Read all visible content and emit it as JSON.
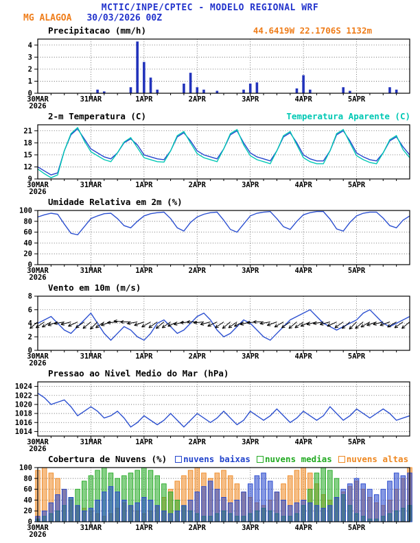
{
  "header": {
    "title": "MCTIC/INPE/CPTEC - MODELO REGIONAL WRF",
    "station": "MG ALAGOA",
    "run": "30/03/2026 00Z",
    "coords": "44.6419W 22.1706S 1132m"
  },
  "colors": {
    "header_blue": "#2233cc",
    "orange": "#ef7d1a",
    "line_blue": "#2b4fd0",
    "cyan": "#00c8b4",
    "green": "#22aa22",
    "axis_black": "#000000"
  },
  "x_axis": {
    "hours_total": 168,
    "tick_hours": [
      0,
      24,
      48,
      72,
      96,
      120,
      144
    ],
    "tick_labels": [
      "30MAR",
      "31MAR",
      "1APR",
      "2APR",
      "3APR",
      "4APR",
      "5APR"
    ],
    "year_label": "2026"
  },
  "chart_data": [
    {
      "id": "precip",
      "type": "bar",
      "title": "Precipitacao (mm/h)",
      "ylim": [
        0,
        4.5
      ],
      "yticks": [
        0,
        1,
        2,
        3,
        4
      ],
      "x_step_hours": 3,
      "color": "#2233bb",
      "values": [
        0,
        0,
        0,
        0,
        0,
        0,
        0,
        0,
        0,
        0.3,
        0.15,
        0,
        0,
        0,
        0.5,
        4.3,
        2.6,
        1.3,
        0.3,
        0,
        0,
        0,
        0.8,
        1.7,
        0.5,
        0.3,
        0,
        0.2,
        0,
        0,
        0,
        0.3,
        0.8,
        0.9,
        0,
        0,
        0,
        0,
        0,
        0.4,
        1.5,
        0.3,
        0,
        0,
        0,
        0,
        0.5,
        0.2,
        0,
        0,
        0,
        0,
        0,
        0.5,
        0.3,
        0,
        0
      ]
    },
    {
      "id": "temp",
      "type": "line",
      "title": "2-m Temperatura (C)",
      "right_label": "Temperatura Aparente (C)",
      "right_label_color": "#00c8b4",
      "ylim": [
        9,
        22.5
      ],
      "yticks": [
        9,
        12,
        15,
        18,
        21
      ],
      "x_step_hours": 3,
      "series": [
        {
          "name": "2-m Temperatura",
          "color": "#2244cc",
          "values": [
            12,
            11,
            10,
            10.5,
            16,
            20,
            21.5,
            19,
            16.5,
            15.5,
            14.5,
            14,
            15.5,
            18,
            19,
            17.5,
            15,
            14.5,
            14,
            13.8,
            16,
            19.5,
            20.5,
            18.5,
            16,
            15,
            14.5,
            14,
            16.5,
            20,
            21,
            18,
            15.5,
            14.5,
            14,
            13.5,
            16,
            19.5,
            20.5,
            18,
            15,
            14,
            13.5,
            13.5,
            16,
            20,
            21,
            18.5,
            15.5,
            14.5,
            13.8,
            13.5,
            15.5,
            18.5,
            19.5,
            17,
            15
          ]
        },
        {
          "name": "Temperatura Aparente",
          "color": "#00c8b4",
          "values": [
            11.5,
            10.3,
            9.3,
            10,
            16,
            20.3,
            21.8,
            18.5,
            15.8,
            14.8,
            13.8,
            13.3,
            15.5,
            18.2,
            19.3,
            16.8,
            14.3,
            13.8,
            13.3,
            13.2,
            16,
            19.8,
            20.8,
            18,
            15.3,
            14.3,
            13.8,
            13.3,
            16.5,
            20.3,
            21.3,
            17.5,
            14.8,
            13.8,
            13.3,
            12.8,
            16,
            19.8,
            20.8,
            17.5,
            14.3,
            13.3,
            12.8,
            12.8,
            16,
            20.3,
            21.3,
            18,
            14.8,
            13.8,
            13.1,
            12.8,
            15.5,
            18.8,
            19.8,
            16.3,
            14.3
          ]
        }
      ]
    },
    {
      "id": "humidity",
      "type": "line",
      "title": "Umidade Relativa em 2m (%)",
      "ylim": [
        0,
        100
      ],
      "yticks": [
        0,
        20,
        40,
        60,
        80,
        100
      ],
      "x_step_hours": 3,
      "series": [
        {
          "name": "Umidade Relativa",
          "color": "#2b4fd0",
          "values": [
            88,
            92,
            95,
            93,
            75,
            58,
            55,
            70,
            85,
            90,
            94,
            95,
            85,
            72,
            68,
            80,
            90,
            94,
            96,
            97,
            85,
            68,
            62,
            78,
            88,
            93,
            96,
            97,
            82,
            65,
            60,
            75,
            90,
            95,
            97,
            98,
            85,
            70,
            65,
            80,
            92,
            96,
            98,
            98,
            84,
            66,
            62,
            78,
            90,
            95,
            97,
            97,
            86,
            72,
            68,
            82,
            90
          ]
        }
      ]
    },
    {
      "id": "wind",
      "type": "wind",
      "title": "Vento em 10m (m/s)",
      "ylim": [
        0,
        8
      ],
      "yticks": [
        0,
        2,
        4,
        6,
        8
      ],
      "x_step_hours": 3,
      "arrow_y": 4.2,
      "arrow_color": "#000000",
      "series": [
        {
          "name": "Velocidade do Vento",
          "color": "#2b4fd0",
          "values": [
            4,
            4.5,
            5,
            4,
            3,
            2.5,
            3.5,
            4.5,
            5.5,
            4,
            2.5,
            1.5,
            2.5,
            3.5,
            3,
            2,
            1.5,
            2.5,
            4,
            4.5,
            3.5,
            2.5,
            3,
            4,
            5,
            5.5,
            4.5,
            3,
            2,
            2.5,
            3.5,
            4.5,
            4,
            3,
            2,
            1.5,
            2.5,
            3.5,
            4.5,
            5,
            5.5,
            6,
            5,
            4,
            3.5,
            3,
            3.5,
            4,
            4.5,
            5.5,
            6,
            5,
            4,
            3.5,
            4,
            4.5,
            5
          ]
        }
      ],
      "directions": [
        50,
        55,
        60,
        70,
        80,
        75,
        65,
        55,
        50,
        45,
        55,
        70,
        85,
        95,
        90,
        80,
        70,
        60,
        55,
        50,
        55,
        65,
        75,
        85,
        90,
        85,
        75,
        65,
        55,
        50,
        55,
        65,
        75,
        85,
        90,
        80,
        70,
        60,
        55,
        50,
        55,
        65,
        75,
        80,
        75,
        65,
        55,
        50,
        45,
        50,
        60,
        70,
        75,
        70,
        60,
        55,
        50
      ]
    },
    {
      "id": "pressure",
      "type": "line",
      "title": "Pressao ao Nivel Medio do Mar (hPa)",
      "ylim": [
        1013,
        1025
      ],
      "yticks": [
        1014,
        1016,
        1018,
        1020,
        1022,
        1024
      ],
      "x_step_hours": 3,
      "series": [
        {
          "name": "Pressao",
          "color": "#2b4fd0",
          "values": [
            1022.5,
            1021.5,
            1020,
            1020.5,
            1021,
            1019.5,
            1017.5,
            1018.5,
            1019.5,
            1018.5,
            1017,
            1017.5,
            1018.5,
            1017,
            1015,
            1016,
            1017.5,
            1016.5,
            1015.5,
            1016.5,
            1018,
            1016.5,
            1015,
            1016.5,
            1018,
            1017,
            1016,
            1017,
            1018.5,
            1017,
            1015.5,
            1016.5,
            1018.5,
            1017.5,
            1016.5,
            1017.5,
            1019,
            1017.5,
            1016,
            1017,
            1018.5,
            1017.5,
            1016.5,
            1017.5,
            1019.5,
            1018,
            1016.5,
            1017.5,
            1019,
            1018,
            1017,
            1018,
            1019,
            1018,
            1016.5,
            1017,
            1017.5
          ]
        }
      ]
    },
    {
      "id": "clouds",
      "type": "cloudbar",
      "title": "Cobertura de Nuvens (%)",
      "ylim": [
        0,
        100
      ],
      "yticks": [
        0,
        20,
        40,
        60,
        80,
        100
      ],
      "x_step_hours": 3,
      "series": [
        {
          "name": "nuvens baixas",
          "color": "#2244cc",
          "values": [
            10,
            20,
            35,
            50,
            60,
            45,
            30,
            20,
            25,
            40,
            55,
            65,
            55,
            40,
            30,
            35,
            45,
            40,
            30,
            20,
            15,
            20,
            30,
            40,
            55,
            65,
            75,
            60,
            45,
            35,
            40,
            55,
            70,
            85,
            90,
            75,
            55,
            40,
            30,
            35,
            40,
            35,
            30,
            25,
            30,
            45,
            60,
            70,
            80,
            70,
            60,
            50,
            60,
            75,
            90,
            85,
            90
          ]
        },
        {
          "name": "nuvens medias",
          "color": "#22aa22",
          "values": [
            5,
            10,
            15,
            20,
            30,
            45,
            60,
            75,
            85,
            95,
            100,
            90,
            80,
            85,
            90,
            95,
            100,
            95,
            85,
            70,
            55,
            40,
            30,
            20,
            15,
            10,
            10,
            15,
            20,
            15,
            10,
            10,
            15,
            20,
            25,
            20,
            15,
            10,
            10,
            15,
            30,
            60,
            90,
            100,
            95,
            80,
            50,
            30,
            15,
            10,
            5,
            5,
            10,
            15,
            20,
            25,
            30
          ]
        },
        {
          "name": "nuvens altas",
          "color": "#ee8822",
          "values": [
            95,
            100,
            90,
            80,
            60,
            40,
            30,
            25,
            20,
            15,
            10,
            15,
            25,
            35,
            30,
            20,
            15,
            20,
            30,
            45,
            60,
            75,
            85,
            95,
            100,
            90,
            80,
            90,
            95,
            85,
            70,
            55,
            45,
            35,
            30,
            40,
            55,
            70,
            85,
            95,
            100,
            90,
            70,
            50,
            40,
            45,
            55,
            65,
            75,
            60,
            45,
            35,
            30,
            40,
            60,
            80,
            100
          ]
        }
      ]
    }
  ]
}
